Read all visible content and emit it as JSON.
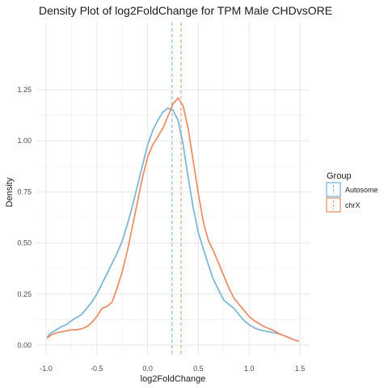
{
  "chart_data": {
    "type": "line",
    "title": "Density Plot of log2FoldChange for TPM Male CHDvsORE",
    "xlabel": "log2FoldChange",
    "ylabel": "Density",
    "xlim": [
      -1.0,
      1.5
    ],
    "ylim": [
      0,
      1.25
    ],
    "x_ticks": [
      -1.0,
      -0.5,
      0.0,
      0.5,
      1.0,
      1.5
    ],
    "x_tick_labels": [
      "-1.0",
      "-0.5",
      "0.0",
      "0.5",
      "1.0",
      "1.5"
    ],
    "y_ticks": [
      0,
      0.25,
      0.5,
      0.75,
      1.0,
      1.25
    ],
    "y_tick_labels": [
      "0.00",
      "0.25",
      "0.50",
      "0.75",
      "1.00",
      "1.25"
    ],
    "grid": true,
    "legend": {
      "title": "Group",
      "position": "right"
    },
    "series": [
      {
        "name": "Autosome",
        "color": "#7fb7d4",
        "mean": 0.24,
        "x": [
          -0.99,
          -0.95,
          -0.9,
          -0.85,
          -0.8,
          -0.75,
          -0.7,
          -0.65,
          -0.6,
          -0.55,
          -0.5,
          -0.45,
          -0.4,
          -0.35,
          -0.3,
          -0.25,
          -0.2,
          -0.15,
          -0.1,
          -0.05,
          0.0,
          0.05,
          0.1,
          0.15,
          0.2,
          0.25,
          0.3,
          0.35,
          0.4,
          0.45,
          0.5,
          0.55,
          0.6,
          0.65,
          0.7,
          0.75,
          0.8,
          0.85,
          0.9,
          0.95,
          1.0,
          1.05,
          1.1,
          1.15,
          1.2,
          1.25,
          1.3,
          1.35,
          1.4,
          1.45,
          1.49
        ],
        "y": [
          0.04,
          0.06,
          0.075,
          0.09,
          0.1,
          0.12,
          0.135,
          0.15,
          0.18,
          0.21,
          0.25,
          0.3,
          0.35,
          0.4,
          0.45,
          0.51,
          0.59,
          0.68,
          0.78,
          0.88,
          0.98,
          1.05,
          1.1,
          1.14,
          1.16,
          1.15,
          1.1,
          0.98,
          0.82,
          0.67,
          0.55,
          0.47,
          0.39,
          0.32,
          0.27,
          0.22,
          0.2,
          0.18,
          0.15,
          0.12,
          0.1,
          0.085,
          0.075,
          0.07,
          0.065,
          0.06,
          0.055,
          0.045,
          0.035,
          0.025,
          0.02
        ]
      },
      {
        "name": "chrX",
        "color": "#e9916a",
        "mean": 0.33,
        "x": [
          -0.99,
          -0.95,
          -0.9,
          -0.85,
          -0.8,
          -0.75,
          -0.7,
          -0.65,
          -0.6,
          -0.55,
          -0.5,
          -0.45,
          -0.4,
          -0.35,
          -0.3,
          -0.25,
          -0.2,
          -0.15,
          -0.1,
          -0.05,
          0.0,
          0.05,
          0.1,
          0.15,
          0.2,
          0.25,
          0.3,
          0.35,
          0.4,
          0.45,
          0.5,
          0.55,
          0.6,
          0.65,
          0.7,
          0.75,
          0.8,
          0.85,
          0.9,
          0.95,
          1.0,
          1.05,
          1.1,
          1.15,
          1.2,
          1.25,
          1.3,
          1.35,
          1.4,
          1.45,
          1.49
        ],
        "y": [
          0.035,
          0.05,
          0.06,
          0.065,
          0.07,
          0.075,
          0.075,
          0.08,
          0.09,
          0.11,
          0.14,
          0.18,
          0.19,
          0.21,
          0.28,
          0.36,
          0.46,
          0.58,
          0.7,
          0.82,
          0.92,
          0.98,
          1.02,
          1.06,
          1.12,
          1.18,
          1.21,
          1.17,
          1.06,
          0.9,
          0.74,
          0.6,
          0.51,
          0.46,
          0.4,
          0.34,
          0.28,
          0.23,
          0.2,
          0.17,
          0.14,
          0.12,
          0.105,
          0.09,
          0.08,
          0.07,
          0.055,
          0.045,
          0.035,
          0.025,
          0.018
        ]
      }
    ]
  }
}
